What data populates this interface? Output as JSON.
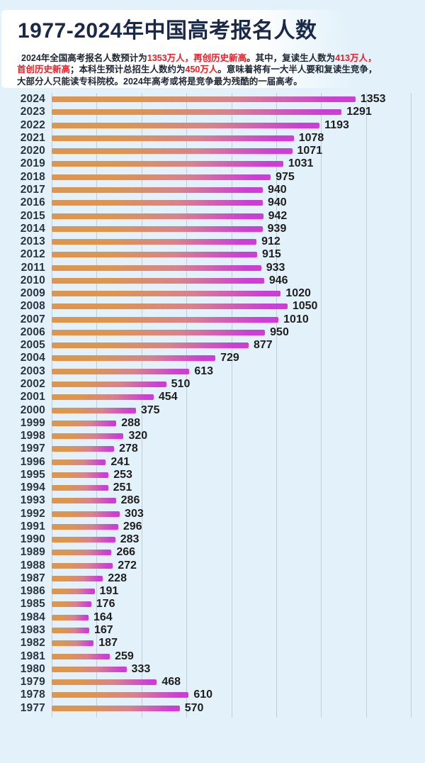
{
  "header": {
    "title": "1977-2024年中国高考报名人数",
    "subtitle_lines": [
      [
        {
          "text": "2024年全国高考报名人数预计为",
          "color": "dark"
        },
        {
          "text": "1353万人，再创历史新高",
          "color": "red"
        },
        {
          "text": "。其中，复读生人数为",
          "color": "dark"
        },
        {
          "text": "413万人，",
          "color": "red"
        }
      ],
      [
        {
          "text": "首创历史新高",
          "color": "red"
        },
        {
          "text": "；本科生预计总招生人数约为",
          "color": "dark"
        },
        {
          "text": "450万人",
          "color": "red"
        },
        {
          "text": "。意味着将有一大半人要和复读生竞争，",
          "color": "dark"
        }
      ],
      [
        {
          "text": "大部分人只能读专科院校。2024年高考或将是竞争最为残酷的一届高考。",
          "color": "dark"
        }
      ]
    ]
  },
  "chart_data": {
    "type": "bar",
    "orientation": "horizontal",
    "title": "1977-2024年中国高考报名人数",
    "unit": "万人",
    "categories": [
      2024,
      2023,
      2022,
      2021,
      2020,
      2019,
      2018,
      2017,
      2016,
      2015,
      2014,
      2013,
      2012,
      2011,
      2010,
      2009,
      2008,
      2007,
      2006,
      2005,
      2004,
      2003,
      2002,
      2001,
      2000,
      1999,
      1998,
      1997,
      1996,
      1995,
      1994,
      1993,
      1992,
      1991,
      1990,
      1989,
      1988,
      1987,
      1986,
      1985,
      1984,
      1983,
      1982,
      1981,
      1980,
      1979,
      1978,
      1977
    ],
    "values": [
      1353,
      1291,
      1193,
      1078,
      1071,
      1031,
      975,
      940,
      940,
      942,
      939,
      912,
      915,
      933,
      946,
      1020,
      1050,
      1010,
      950,
      877,
      729,
      613,
      510,
      454,
      375,
      288,
      320,
      278,
      241,
      253,
      251,
      286,
      303,
      296,
      283,
      266,
      272,
      228,
      191,
      176,
      164,
      167,
      187,
      259,
      333,
      468,
      610,
      570
    ],
    "xlim": [
      0,
      1600
    ],
    "grid_step": 200,
    "grid": true,
    "value_labels": true,
    "xlabel": "",
    "ylabel": ""
  },
  "colors": {
    "background": "#e3f2fa",
    "card": "#ffffff",
    "title": "#1b2948",
    "text": "#1e2633",
    "accent_red": "#ee1d25",
    "bar_start": "#dd9550",
    "bar_mid": "#d8838b",
    "bar_end": "#cc3ed6",
    "gridline": "#c3cdd4",
    "year_label": "#2a3440",
    "value_label": "#1e1e1e"
  }
}
